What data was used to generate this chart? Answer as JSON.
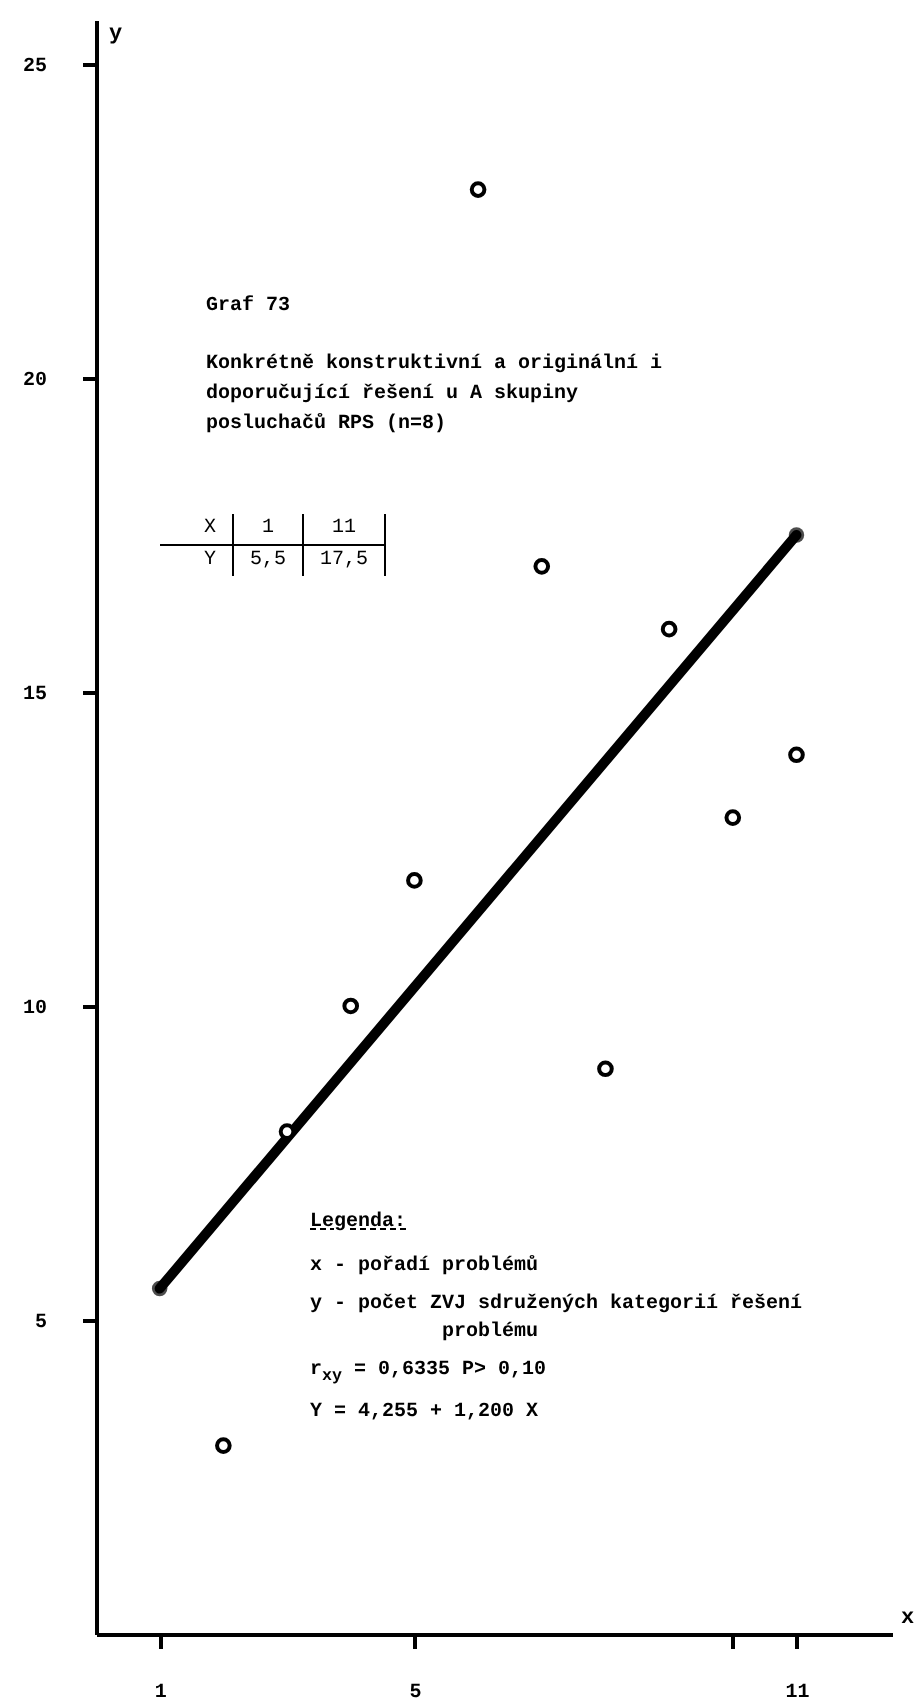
{
  "chart_data": {
    "type": "scatter",
    "title": "Graf 73",
    "subtitle": "Konkrétně konstruktivní a originální i doporučující řešení u A skupiny posluchačů RPS (n=8)",
    "xlabel": "x",
    "ylabel": "y",
    "xlim": [
      0,
      12.5
    ],
    "ylim": [
      0,
      25.7
    ],
    "xticks": [
      1,
      5,
      {
        "value": 10,
        "label": null
      },
      11
    ],
    "yticks": [
      5,
      10,
      15,
      20,
      25
    ],
    "series": [
      {
        "color": "#000000",
        "marker": "circle",
        "x": [
          2,
          3,
          4,
          5,
          6,
          7,
          8,
          9,
          10,
          11
        ],
        "values": [
          3,
          8,
          10,
          12,
          23,
          17,
          9,
          16,
          13,
          14
        ]
      },
      {
        "type": "line",
        "color": "#000000",
        "marker": "circle",
        "line_style": "solid",
        "x": [
          1,
          11
        ],
        "values": [
          5.5,
          17.5
        ]
      }
    ],
    "annotations": [
      "X",
      "1",
      "11",
      "Y",
      "5,5",
      "17,5",
      "Legenda:",
      "x - pořadí problémů",
      "y - počet ZVJ sdružených kategorií řešení problému",
      "r$_{xy}$ = 0,6335 P> 0,10",
      "Y = 4,255 + 1,200 X"
    ]
  }
}
